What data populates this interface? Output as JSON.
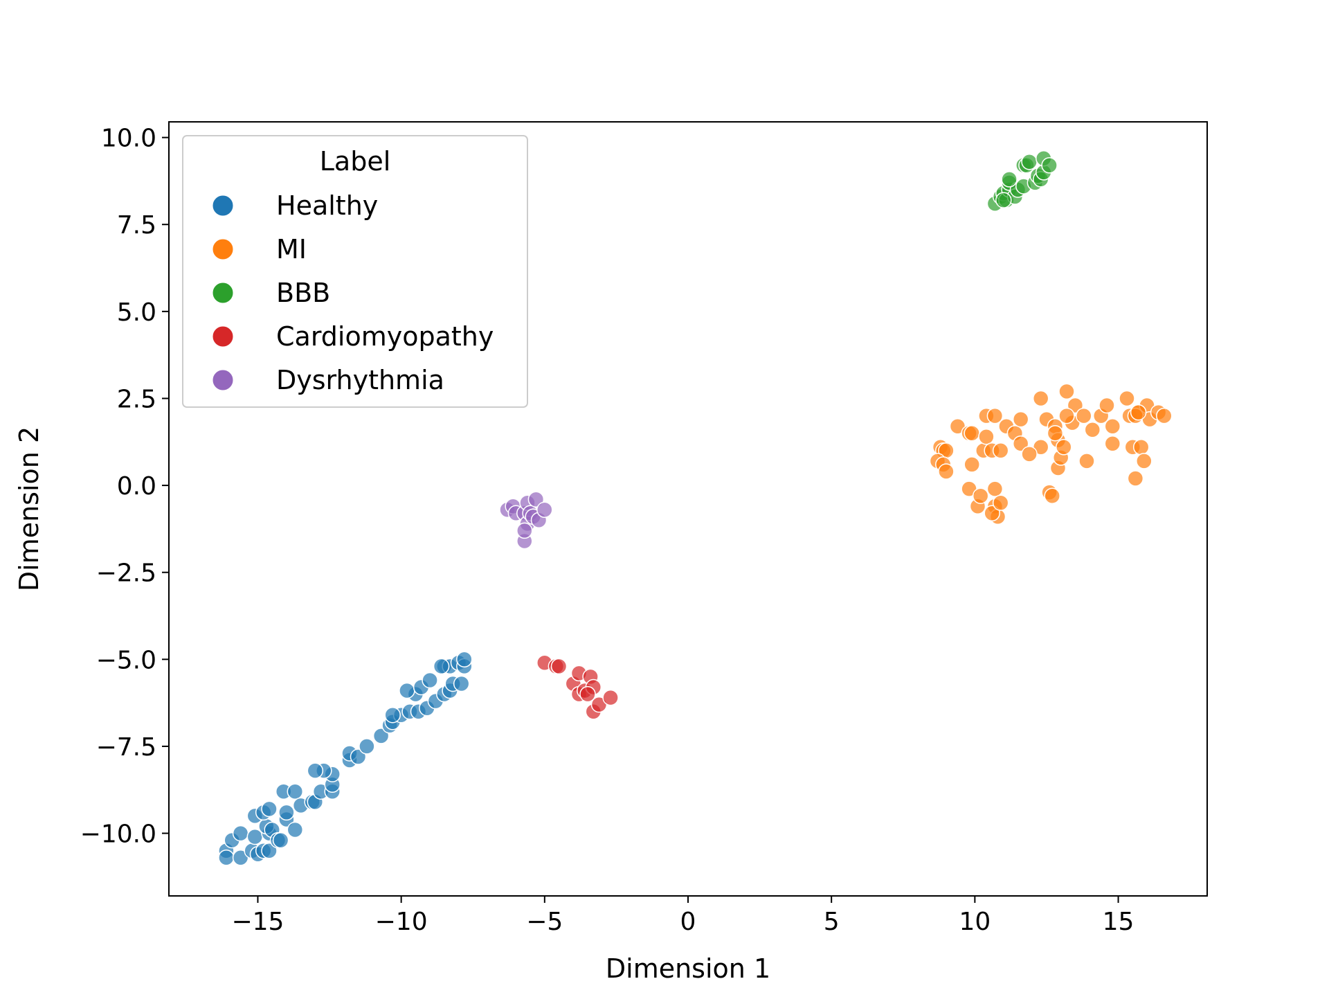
{
  "chart_data": {
    "type": "scatter",
    "title": "",
    "xlabel": "Dimension 1",
    "ylabel": "Dimension 2",
    "xlim": [
      -18.1,
      18.1
    ],
    "ylim": [
      -11.8,
      10.45
    ],
    "xticks": [
      -15,
      -10,
      -5,
      0,
      5,
      10,
      15
    ],
    "yticks": [
      -10.0,
      -7.5,
      -5.0,
      -2.5,
      0.0,
      2.5,
      5.0,
      7.5,
      10.0
    ],
    "xtick_labels": [
      "−15",
      "−10",
      "−5",
      "0",
      "5",
      "10",
      "15"
    ],
    "ytick_labels": [
      "−10.0",
      "−7.5",
      "−5.0",
      "−2.5",
      "0.0",
      "2.5",
      "5.0",
      "7.5",
      "10.0"
    ],
    "grid": false,
    "legend": {
      "title": "Label",
      "position": "upper-left"
    },
    "series": [
      {
        "name": "Healthy",
        "color": "#1f77b4",
        "points": [
          [
            -16.1,
            -10.5
          ],
          [
            -16.1,
            -10.7
          ],
          [
            -15.9,
            -10.2
          ],
          [
            -15.6,
            -10.7
          ],
          [
            -15.6,
            -10.0
          ],
          [
            -15.2,
            -10.5
          ],
          [
            -15.1,
            -10.1
          ],
          [
            -15.0,
            -10.6
          ],
          [
            -14.8,
            -10.5
          ],
          [
            -14.6,
            -10.5
          ],
          [
            -14.6,
            -10.0
          ],
          [
            -14.7,
            -9.8
          ],
          [
            -14.5,
            -9.9
          ],
          [
            -14.3,
            -10.2
          ],
          [
            -14.2,
            -10.2
          ],
          [
            -14.0,
            -9.6
          ],
          [
            -14.0,
            -9.4
          ],
          [
            -13.7,
            -9.9
          ],
          [
            -15.1,
            -9.5
          ],
          [
            -14.8,
            -9.4
          ],
          [
            -14.6,
            -9.3
          ],
          [
            -14.1,
            -8.8
          ],
          [
            -13.7,
            -8.8
          ],
          [
            -13.5,
            -9.2
          ],
          [
            -13.1,
            -9.1
          ],
          [
            -13.0,
            -9.1
          ],
          [
            -12.8,
            -8.8
          ],
          [
            -12.4,
            -8.8
          ],
          [
            -12.4,
            -8.6
          ],
          [
            -12.4,
            -8.3
          ],
          [
            -12.7,
            -8.2
          ],
          [
            -13.0,
            -8.2
          ],
          [
            -11.8,
            -7.9
          ],
          [
            -11.8,
            -7.7
          ],
          [
            -11.5,
            -7.8
          ],
          [
            -11.2,
            -7.5
          ],
          [
            -10.7,
            -7.2
          ],
          [
            -10.4,
            -6.9
          ],
          [
            -10.3,
            -6.8
          ],
          [
            -10.0,
            -6.6
          ],
          [
            -10.3,
            -6.6
          ],
          [
            -9.7,
            -6.5
          ],
          [
            -9.4,
            -6.5
          ],
          [
            -9.1,
            -6.4
          ],
          [
            -8.8,
            -6.2
          ],
          [
            -9.5,
            -6.0
          ],
          [
            -9.8,
            -5.9
          ],
          [
            -9.3,
            -5.8
          ],
          [
            -9.0,
            -5.6
          ],
          [
            -8.5,
            -5.2
          ],
          [
            -8.5,
            -6.0
          ],
          [
            -8.3,
            -5.9
          ],
          [
            -8.3,
            -5.2
          ],
          [
            -8.2,
            -5.7
          ],
          [
            -7.9,
            -5.7
          ],
          [
            -8.0,
            -5.1
          ],
          [
            -7.8,
            -5.2
          ],
          [
            -7.8,
            -5.0
          ],
          [
            -8.6,
            -5.2
          ]
        ]
      },
      {
        "name": "MI",
        "color": "#ff7f0e",
        "points": [
          [
            8.8,
            1.1
          ],
          [
            8.9,
            1.0
          ],
          [
            9.0,
            1.0
          ],
          [
            8.7,
            0.7
          ],
          [
            8.9,
            0.6
          ],
          [
            9.0,
            0.4
          ],
          [
            9.4,
            1.7
          ],
          [
            9.8,
            1.5
          ],
          [
            9.9,
            1.5
          ],
          [
            9.9,
            0.6
          ],
          [
            9.8,
            -0.1
          ],
          [
            10.1,
            -0.6
          ],
          [
            10.2,
            -0.3
          ],
          [
            10.3,
            1.0
          ],
          [
            10.4,
            1.4
          ],
          [
            10.4,
            2.0
          ],
          [
            10.6,
            1.0
          ],
          [
            10.7,
            -0.1
          ],
          [
            10.7,
            -0.6
          ],
          [
            10.8,
            -0.9
          ],
          [
            10.6,
            -0.8
          ],
          [
            10.9,
            -0.5
          ],
          [
            10.7,
            2.0
          ],
          [
            10.9,
            1.0
          ],
          [
            11.1,
            1.7
          ],
          [
            11.4,
            1.5
          ],
          [
            11.6,
            1.9
          ],
          [
            11.6,
            1.2
          ],
          [
            12.3,
            2.5
          ],
          [
            12.5,
            1.9
          ],
          [
            12.6,
            -0.2
          ],
          [
            12.7,
            -0.3
          ],
          [
            12.8,
            1.7
          ],
          [
            12.9,
            1.3
          ],
          [
            12.9,
            0.5
          ],
          [
            13.0,
            0.8
          ],
          [
            13.1,
            1.1
          ],
          [
            13.2,
            2.7
          ],
          [
            13.5,
            2.3
          ],
          [
            13.4,
            1.8
          ],
          [
            13.8,
            2.0
          ],
          [
            13.9,
            0.7
          ],
          [
            14.1,
            1.6
          ],
          [
            14.4,
            2.0
          ],
          [
            14.6,
            2.3
          ],
          [
            14.8,
            1.7
          ],
          [
            14.8,
            1.2
          ],
          [
            15.3,
            2.5
          ],
          [
            15.4,
            2.0
          ],
          [
            15.5,
            1.1
          ],
          [
            15.7,
            2.1
          ],
          [
            15.6,
            2.0
          ],
          [
            15.6,
            0.2
          ],
          [
            15.8,
            1.1
          ],
          [
            15.9,
            0.7
          ],
          [
            16.0,
            2.3
          ],
          [
            16.1,
            1.9
          ],
          [
            16.4,
            2.1
          ],
          [
            16.6,
            2.0
          ],
          [
            15.7,
            2.1
          ],
          [
            12.3,
            1.1
          ],
          [
            12.8,
            1.5
          ],
          [
            13.2,
            2.0
          ],
          [
            11.9,
            0.9
          ]
        ]
      },
      {
        "name": "BBB",
        "color": "#2ca02c",
        "points": [
          [
            10.7,
            8.1
          ],
          [
            10.9,
            8.3
          ],
          [
            11.0,
            8.4
          ],
          [
            11.1,
            8.2
          ],
          [
            11.2,
            8.5
          ],
          [
            11.2,
            8.7
          ],
          [
            11.4,
            8.3
          ],
          [
            11.5,
            8.5
          ],
          [
            11.7,
            8.6
          ],
          [
            11.7,
            9.2
          ],
          [
            11.8,
            9.2
          ],
          [
            11.9,
            9.3
          ],
          [
            12.1,
            8.7
          ],
          [
            12.2,
            8.9
          ],
          [
            12.3,
            8.8
          ],
          [
            12.4,
            9.0
          ],
          [
            12.4,
            9.4
          ],
          [
            12.6,
            9.2
          ],
          [
            11.0,
            8.2
          ],
          [
            11.2,
            8.8
          ]
        ]
      },
      {
        "name": "Cardiomyopathy",
        "color": "#d62728",
        "points": [
          [
            -5.0,
            -5.1
          ],
          [
            -4.6,
            -5.2
          ],
          [
            -4.5,
            -5.2
          ],
          [
            -4.0,
            -5.7
          ],
          [
            -3.8,
            -5.4
          ],
          [
            -3.8,
            -6.0
          ],
          [
            -3.6,
            -5.9
          ],
          [
            -3.4,
            -5.5
          ],
          [
            -3.3,
            -5.8
          ],
          [
            -3.3,
            -6.5
          ],
          [
            -3.1,
            -6.3
          ],
          [
            -2.7,
            -6.1
          ],
          [
            -3.5,
            -6.0
          ]
        ]
      },
      {
        "name": "Dysrhythmia",
        "color": "#9467bd",
        "points": [
          [
            -6.3,
            -0.7
          ],
          [
            -6.1,
            -0.6
          ],
          [
            -6.0,
            -0.8
          ],
          [
            -5.7,
            -0.8
          ],
          [
            -5.6,
            -0.5
          ],
          [
            -5.6,
            -1.1
          ],
          [
            -5.5,
            -0.8
          ],
          [
            -5.4,
            -0.9
          ],
          [
            -5.3,
            -0.4
          ],
          [
            -5.2,
            -1.0
          ],
          [
            -5.0,
            -0.7
          ],
          [
            -5.7,
            -1.6
          ],
          [
            -5.7,
            -1.3
          ]
        ]
      }
    ]
  }
}
